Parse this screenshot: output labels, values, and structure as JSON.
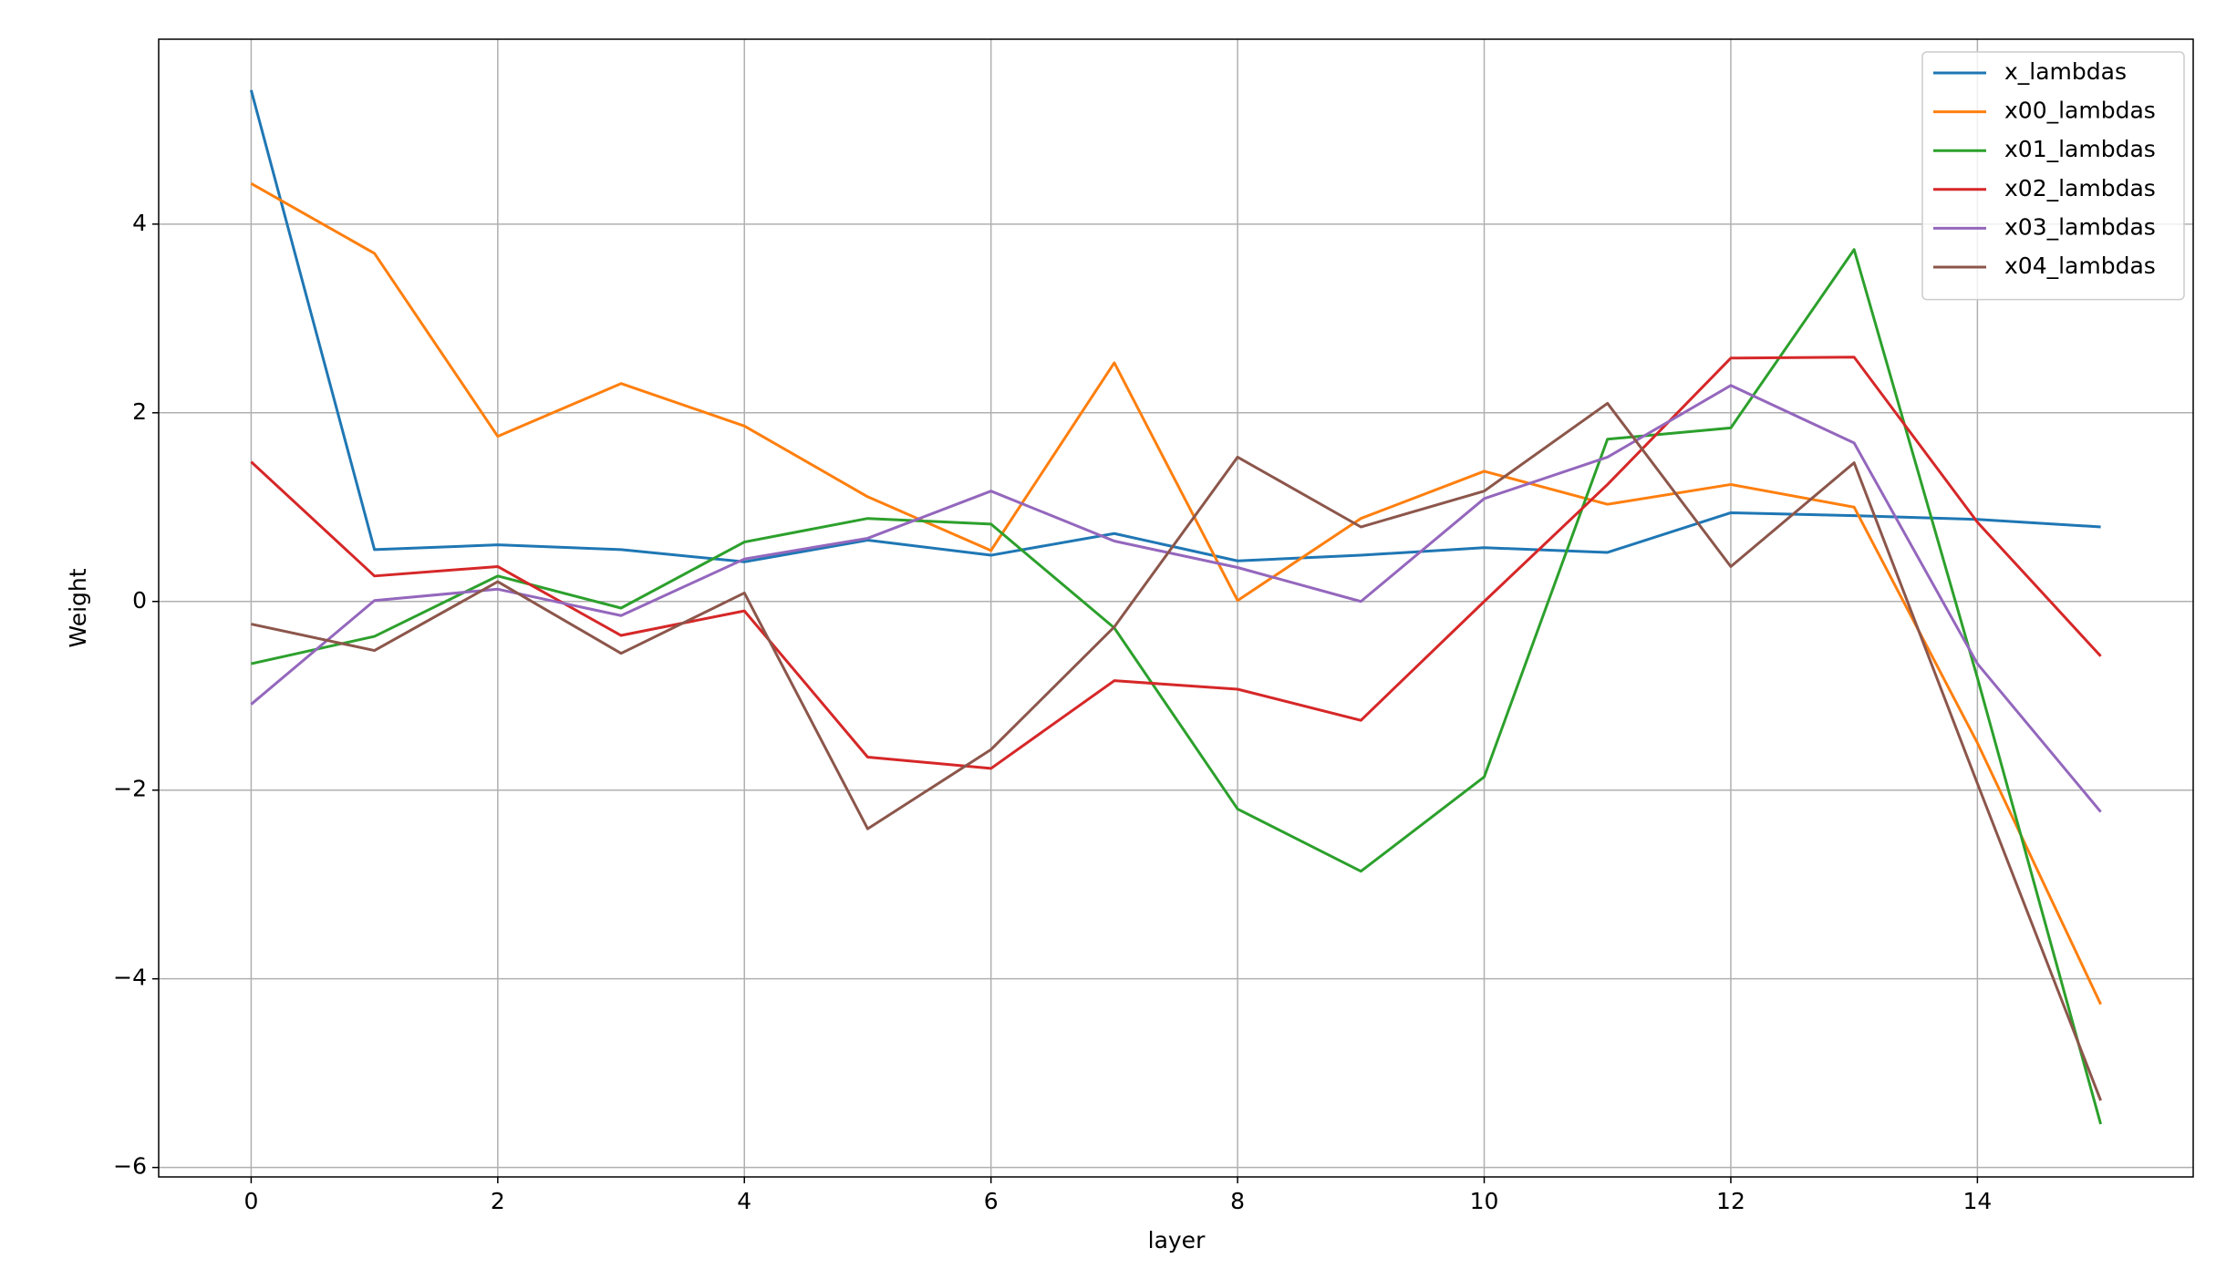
{
  "chart_data": {
    "type": "line",
    "xlabel": "layer",
    "ylabel": "Weight",
    "x": [
      0,
      1,
      2,
      3,
      4,
      5,
      6,
      7,
      8,
      9,
      10,
      11,
      12,
      13,
      14,
      15
    ],
    "series": [
      {
        "name": "x_lambdas",
        "color": "#1f77b4",
        "values": [
          5.42,
          0.55,
          0.6,
          0.55,
          0.42,
          0.65,
          0.49,
          0.72,
          0.43,
          0.49,
          0.57,
          0.52,
          0.94,
          0.91,
          0.87,
          0.79
        ]
      },
      {
        "name": "x00_lambdas",
        "color": "#ff7f0e",
        "values": [
          4.43,
          3.69,
          1.75,
          2.31,
          1.86,
          1.11,
          0.54,
          2.53,
          0.01,
          0.88,
          1.38,
          1.03,
          1.24,
          1.0,
          -1.5,
          -4.27
        ]
      },
      {
        "name": "x01_lambdas",
        "color": "#2ca02c",
        "values": [
          -0.66,
          -0.37,
          0.27,
          -0.07,
          0.63,
          0.88,
          0.82,
          -0.28,
          -2.2,
          -2.86,
          -1.86,
          1.72,
          1.84,
          3.73,
          -0.81,
          -5.54
        ]
      },
      {
        "name": "x02_lambdas",
        "color": "#d62728",
        "values": [
          1.48,
          0.27,
          0.37,
          -0.36,
          -0.1,
          -1.65,
          -1.77,
          -0.84,
          -0.93,
          -1.26,
          0.0,
          1.24,
          2.58,
          2.59,
          0.84,
          -0.58
        ]
      },
      {
        "name": "x03_lambdas",
        "color": "#9467bd",
        "values": [
          -1.09,
          0.01,
          0.13,
          -0.15,
          0.45,
          0.67,
          1.17,
          0.64,
          0.36,
          0.0,
          1.09,
          1.53,
          2.29,
          1.68,
          -0.66,
          -2.23
        ]
      },
      {
        "name": "x04_lambdas",
        "color": "#8c564b",
        "values": [
          -0.24,
          -0.52,
          0.21,
          -0.55,
          0.09,
          -2.41,
          -1.57,
          -0.27,
          1.53,
          0.79,
          1.17,
          2.1,
          0.37,
          1.47,
          -1.93,
          -5.29
        ]
      }
    ],
    "xlim": [
      -0.75,
      15.75
    ],
    "ylim": [
      -6.1,
      5.96
    ],
    "xticks": [
      0,
      2,
      4,
      6,
      8,
      10,
      12,
      14
    ],
    "yticks": [
      {
        "value": -6,
        "label": "−6"
      },
      {
        "value": -4,
        "label": "−4"
      },
      {
        "value": -2,
        "label": "−2"
      },
      0,
      2,
      4
    ],
    "grid": true,
    "legend": "upper right"
  }
}
